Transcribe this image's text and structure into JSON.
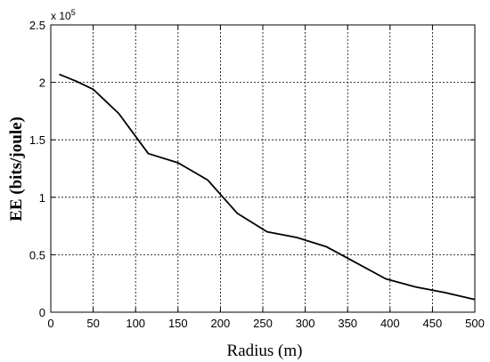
{
  "chart_data": {
    "type": "line",
    "xlabel": "Radius (m)",
    "ylabel": "EE (bits/joule)",
    "y_multiplier": {
      "base": "x 10",
      "exponent": "5"
    },
    "xlim": [
      0,
      500
    ],
    "ylim": [
      0,
      2.5
    ],
    "x_ticks": [
      0,
      50,
      100,
      150,
      200,
      250,
      300,
      350,
      400,
      450,
      500
    ],
    "y_ticks": [
      0,
      0.5,
      1,
      1.5,
      2,
      2.5
    ],
    "x_tick_labels": [
      "0",
      "50",
      "100",
      "150",
      "200",
      "250",
      "300",
      "350",
      "400",
      "450",
      "500"
    ],
    "y_tick_labels": [
      "0",
      "0.5",
      "1",
      "1.5",
      "2",
      "2.5"
    ],
    "grid": true,
    "legend": "none",
    "series": [
      {
        "color": "#000000",
        "x": [
          10,
          30,
          50,
          80,
          100,
          115,
          150,
          185,
          220,
          255,
          290,
          325,
          360,
          395,
          430,
          465,
          500
        ],
        "values": [
          2.07,
          2.01,
          1.94,
          1.73,
          1.53,
          1.38,
          1.3,
          1.15,
          0.86,
          0.7,
          0.65,
          0.57,
          0.43,
          0.29,
          0.22,
          0.17,
          0.11
        ]
      }
    ]
  }
}
